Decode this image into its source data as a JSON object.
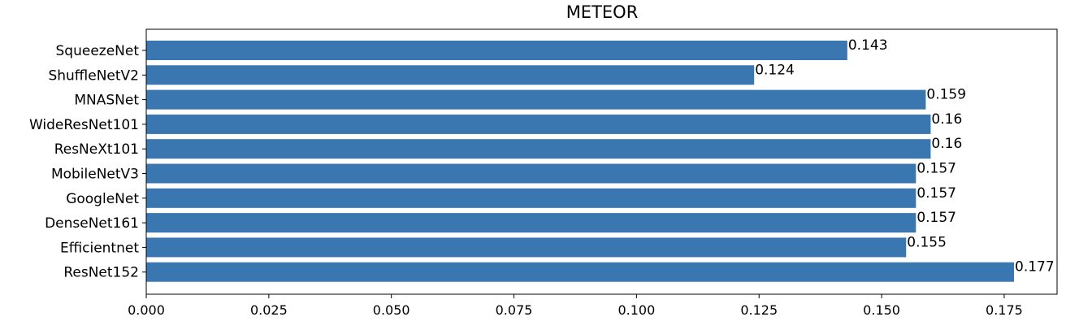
{
  "chart_data": {
    "type": "bar",
    "orientation": "horizontal",
    "title": "METEOR",
    "categories": [
      "SqueezeNet",
      "ShuffleNetV2",
      "MNASNet",
      "WideResNet101",
      "ResNeXt101",
      "MobileNetV3",
      "GoogleNet",
      "DenseNet161",
      "Efficientnet",
      "ResNet152"
    ],
    "values": [
      0.143,
      0.124,
      0.159,
      0.16,
      0.16,
      0.157,
      0.157,
      0.157,
      0.155,
      0.177
    ],
    "value_labels": [
      "0.143",
      "0.124",
      "0.159",
      "0.16",
      "0.16",
      "0.157",
      "0.157",
      "0.157",
      "0.155",
      "0.177"
    ],
    "xticks": [
      0.0,
      0.025,
      0.05,
      0.075,
      0.1,
      0.125,
      0.15,
      0.175
    ],
    "xtick_labels": [
      "0.000",
      "0.025",
      "0.050",
      "0.075",
      "0.100",
      "0.125",
      "0.150",
      "0.175"
    ],
    "xlim": [
      0,
      0.185
    ],
    "xlabel": "",
    "ylabel": "",
    "grid": false,
    "bar_color": "#3a76b0"
  }
}
